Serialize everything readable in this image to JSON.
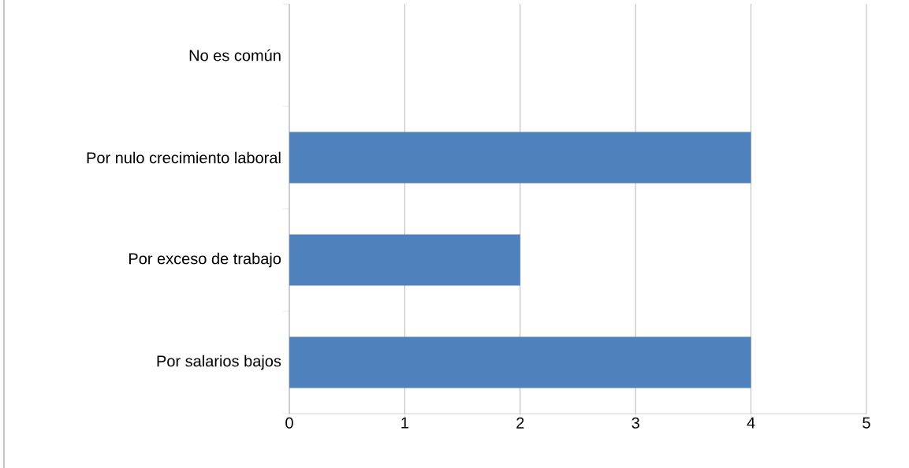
{
  "chart_data": {
    "type": "bar",
    "orientation": "horizontal",
    "categories": [
      "No es común",
      "Por nulo crecimiento laboral",
      "Por exceso de trabajo",
      "Por salarios bajos"
    ],
    "values": [
      0,
      4,
      2,
      4
    ],
    "color": "#4f81bd",
    "xlim": [
      0,
      5
    ],
    "xticks": [
      0,
      1,
      2,
      3,
      4,
      5
    ],
    "grid": "x"
  }
}
